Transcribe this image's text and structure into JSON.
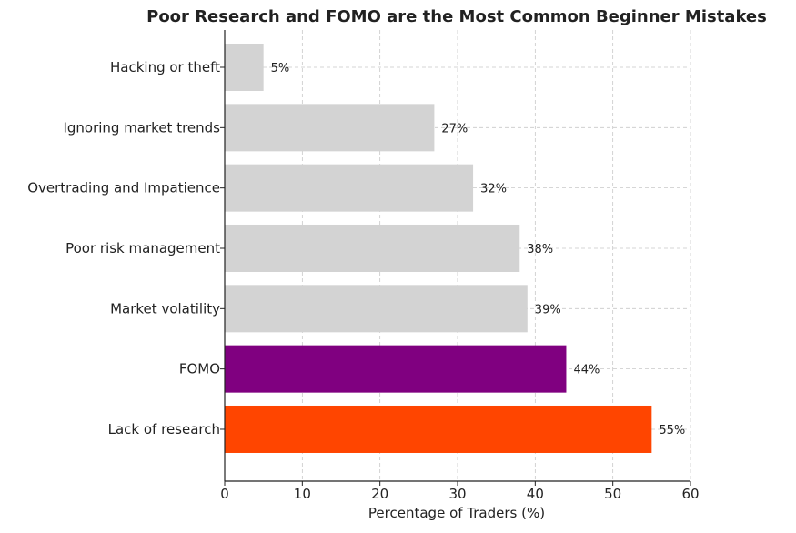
{
  "chart_data": {
    "type": "bar",
    "orientation": "horizontal",
    "title": "Poor Research and FOMO are the Most Common Beginner Mistakes",
    "xlabel": "Percentage of Traders (%)",
    "ylabel": "",
    "xlim": [
      0,
      60
    ],
    "x_ticks": [
      "0",
      "10",
      "20",
      "30",
      "40",
      "50",
      "60"
    ],
    "grid": true,
    "categories": [
      "Lack of research",
      "FOMO",
      "Market volatility",
      "Poor risk management",
      "Overtrading and Impatience",
      "Ignoring market trends",
      "Hacking or theft"
    ],
    "values": [
      55,
      44,
      39,
      38,
      32,
      27,
      5
    ],
    "data_labels": [
      "55%",
      "44%",
      "39%",
      "38%",
      "32%",
      "27%",
      "5%"
    ],
    "bar_colors": [
      "#ff4500",
      "#800080",
      "#d3d3d3",
      "#d3d3d3",
      "#d3d3d3",
      "#d3d3d3",
      "#d3d3d3"
    ]
  }
}
